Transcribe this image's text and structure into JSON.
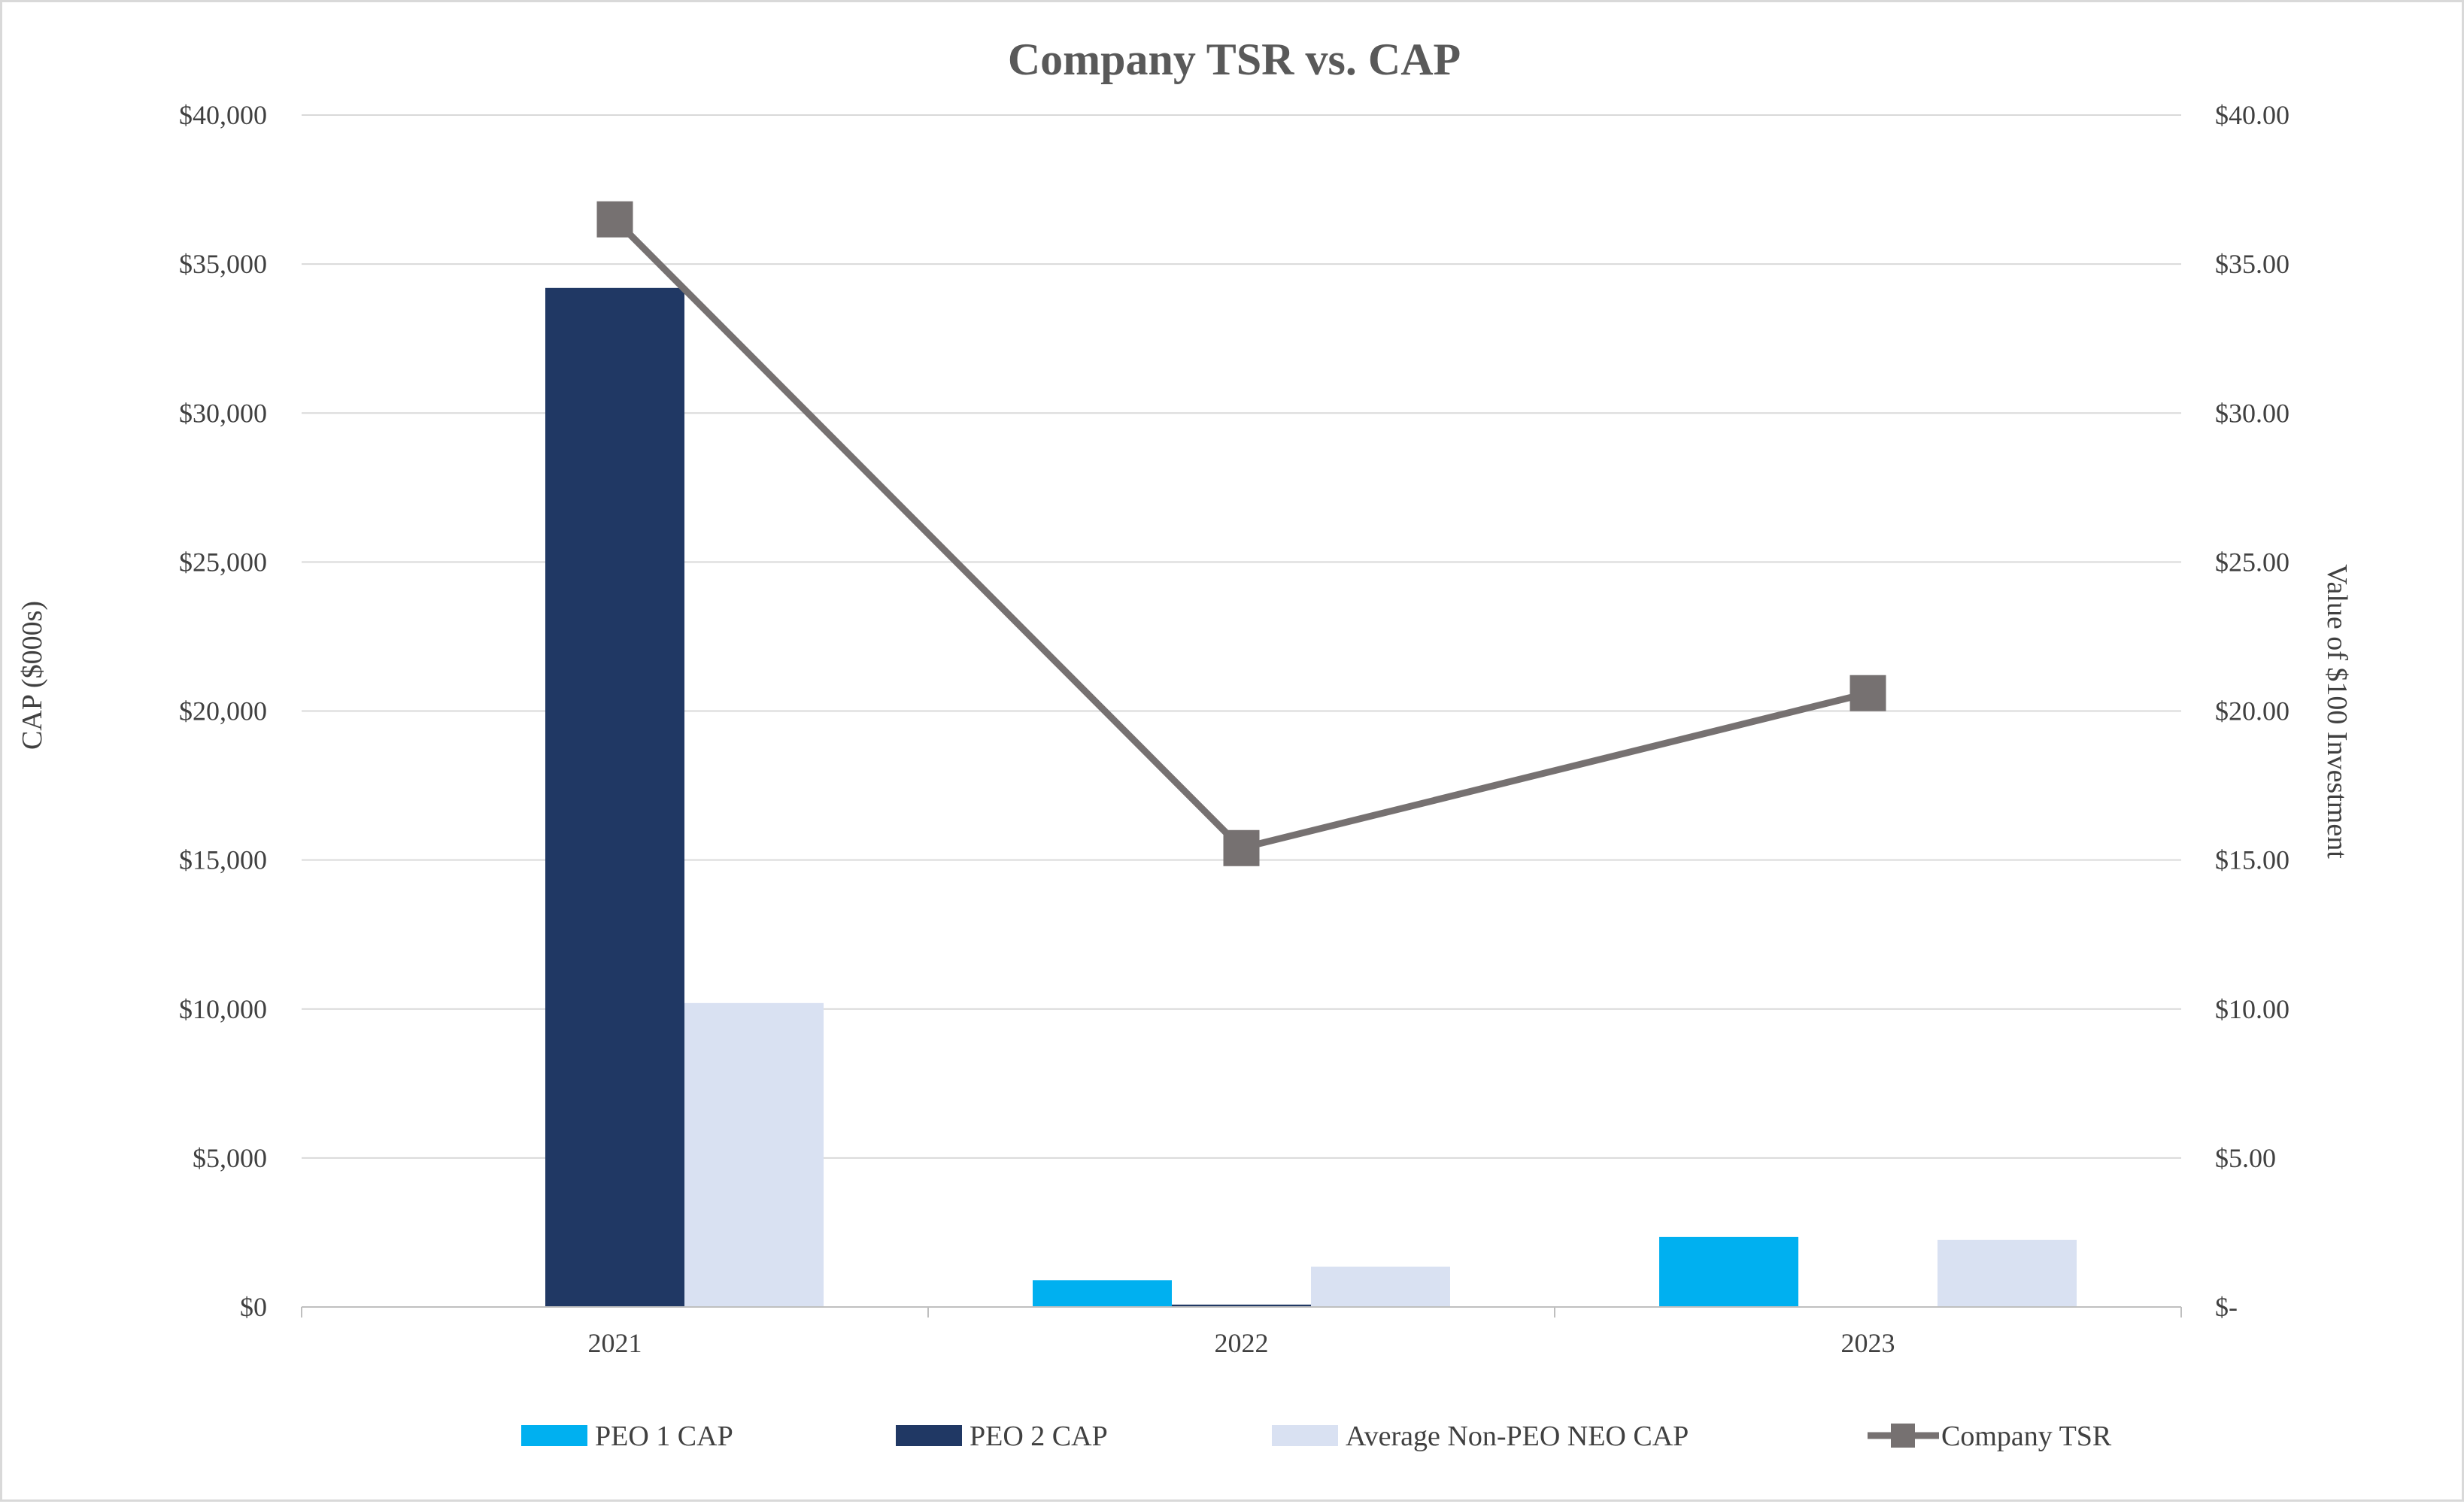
{
  "chart_data": {
    "type": "bar",
    "title": "Company TSR vs. CAP",
    "categories": [
      "2021",
      "2022",
      "2023"
    ],
    "ylabel": "CAP ($000s)",
    "y2label": "Value of $100 Investment",
    "ylim": [
      0,
      40000
    ],
    "y2lim": [
      0,
      40
    ],
    "yticks": [
      0,
      5000,
      10000,
      15000,
      20000,
      25000,
      30000,
      35000,
      40000
    ],
    "ytick_labels": [
      "$0",
      "$5,000",
      "$10,000",
      "$15,000",
      "$20,000",
      "$25,000",
      "$30,000",
      "$35,000",
      "$40,000"
    ],
    "y2ticks": [
      0,
      5,
      10,
      15,
      20,
      25,
      30,
      35,
      40
    ],
    "y2tick_labels": [
      "$-",
      "$5.00",
      "$10.00",
      "$15.00",
      "$20.00",
      "$25.00",
      "$30.00",
      "$35.00",
      "$40.00"
    ],
    "grid": true,
    "legend_position": "bottom",
    "series": [
      {
        "name": "PEO 1 CAP",
        "kind": "bar",
        "axis": "left",
        "color": "#00b0f0",
        "values": [
          0,
          900,
          2350
        ]
      },
      {
        "name": "PEO 2 CAP",
        "kind": "bar",
        "axis": "left",
        "color": "#203864",
        "values": [
          34200,
          80,
          0
        ]
      },
      {
        "name": "Average Non-PEO NEO CAP",
        "kind": "bar",
        "axis": "left",
        "color": "#d9e1f2",
        "values": [
          10200,
          1350,
          2250
        ]
      },
      {
        "name": "Company TSR",
        "kind": "line",
        "axis": "right",
        "color": "#767171",
        "marker": "square",
        "values": [
          36.5,
          15.4,
          20.6
        ]
      }
    ]
  }
}
